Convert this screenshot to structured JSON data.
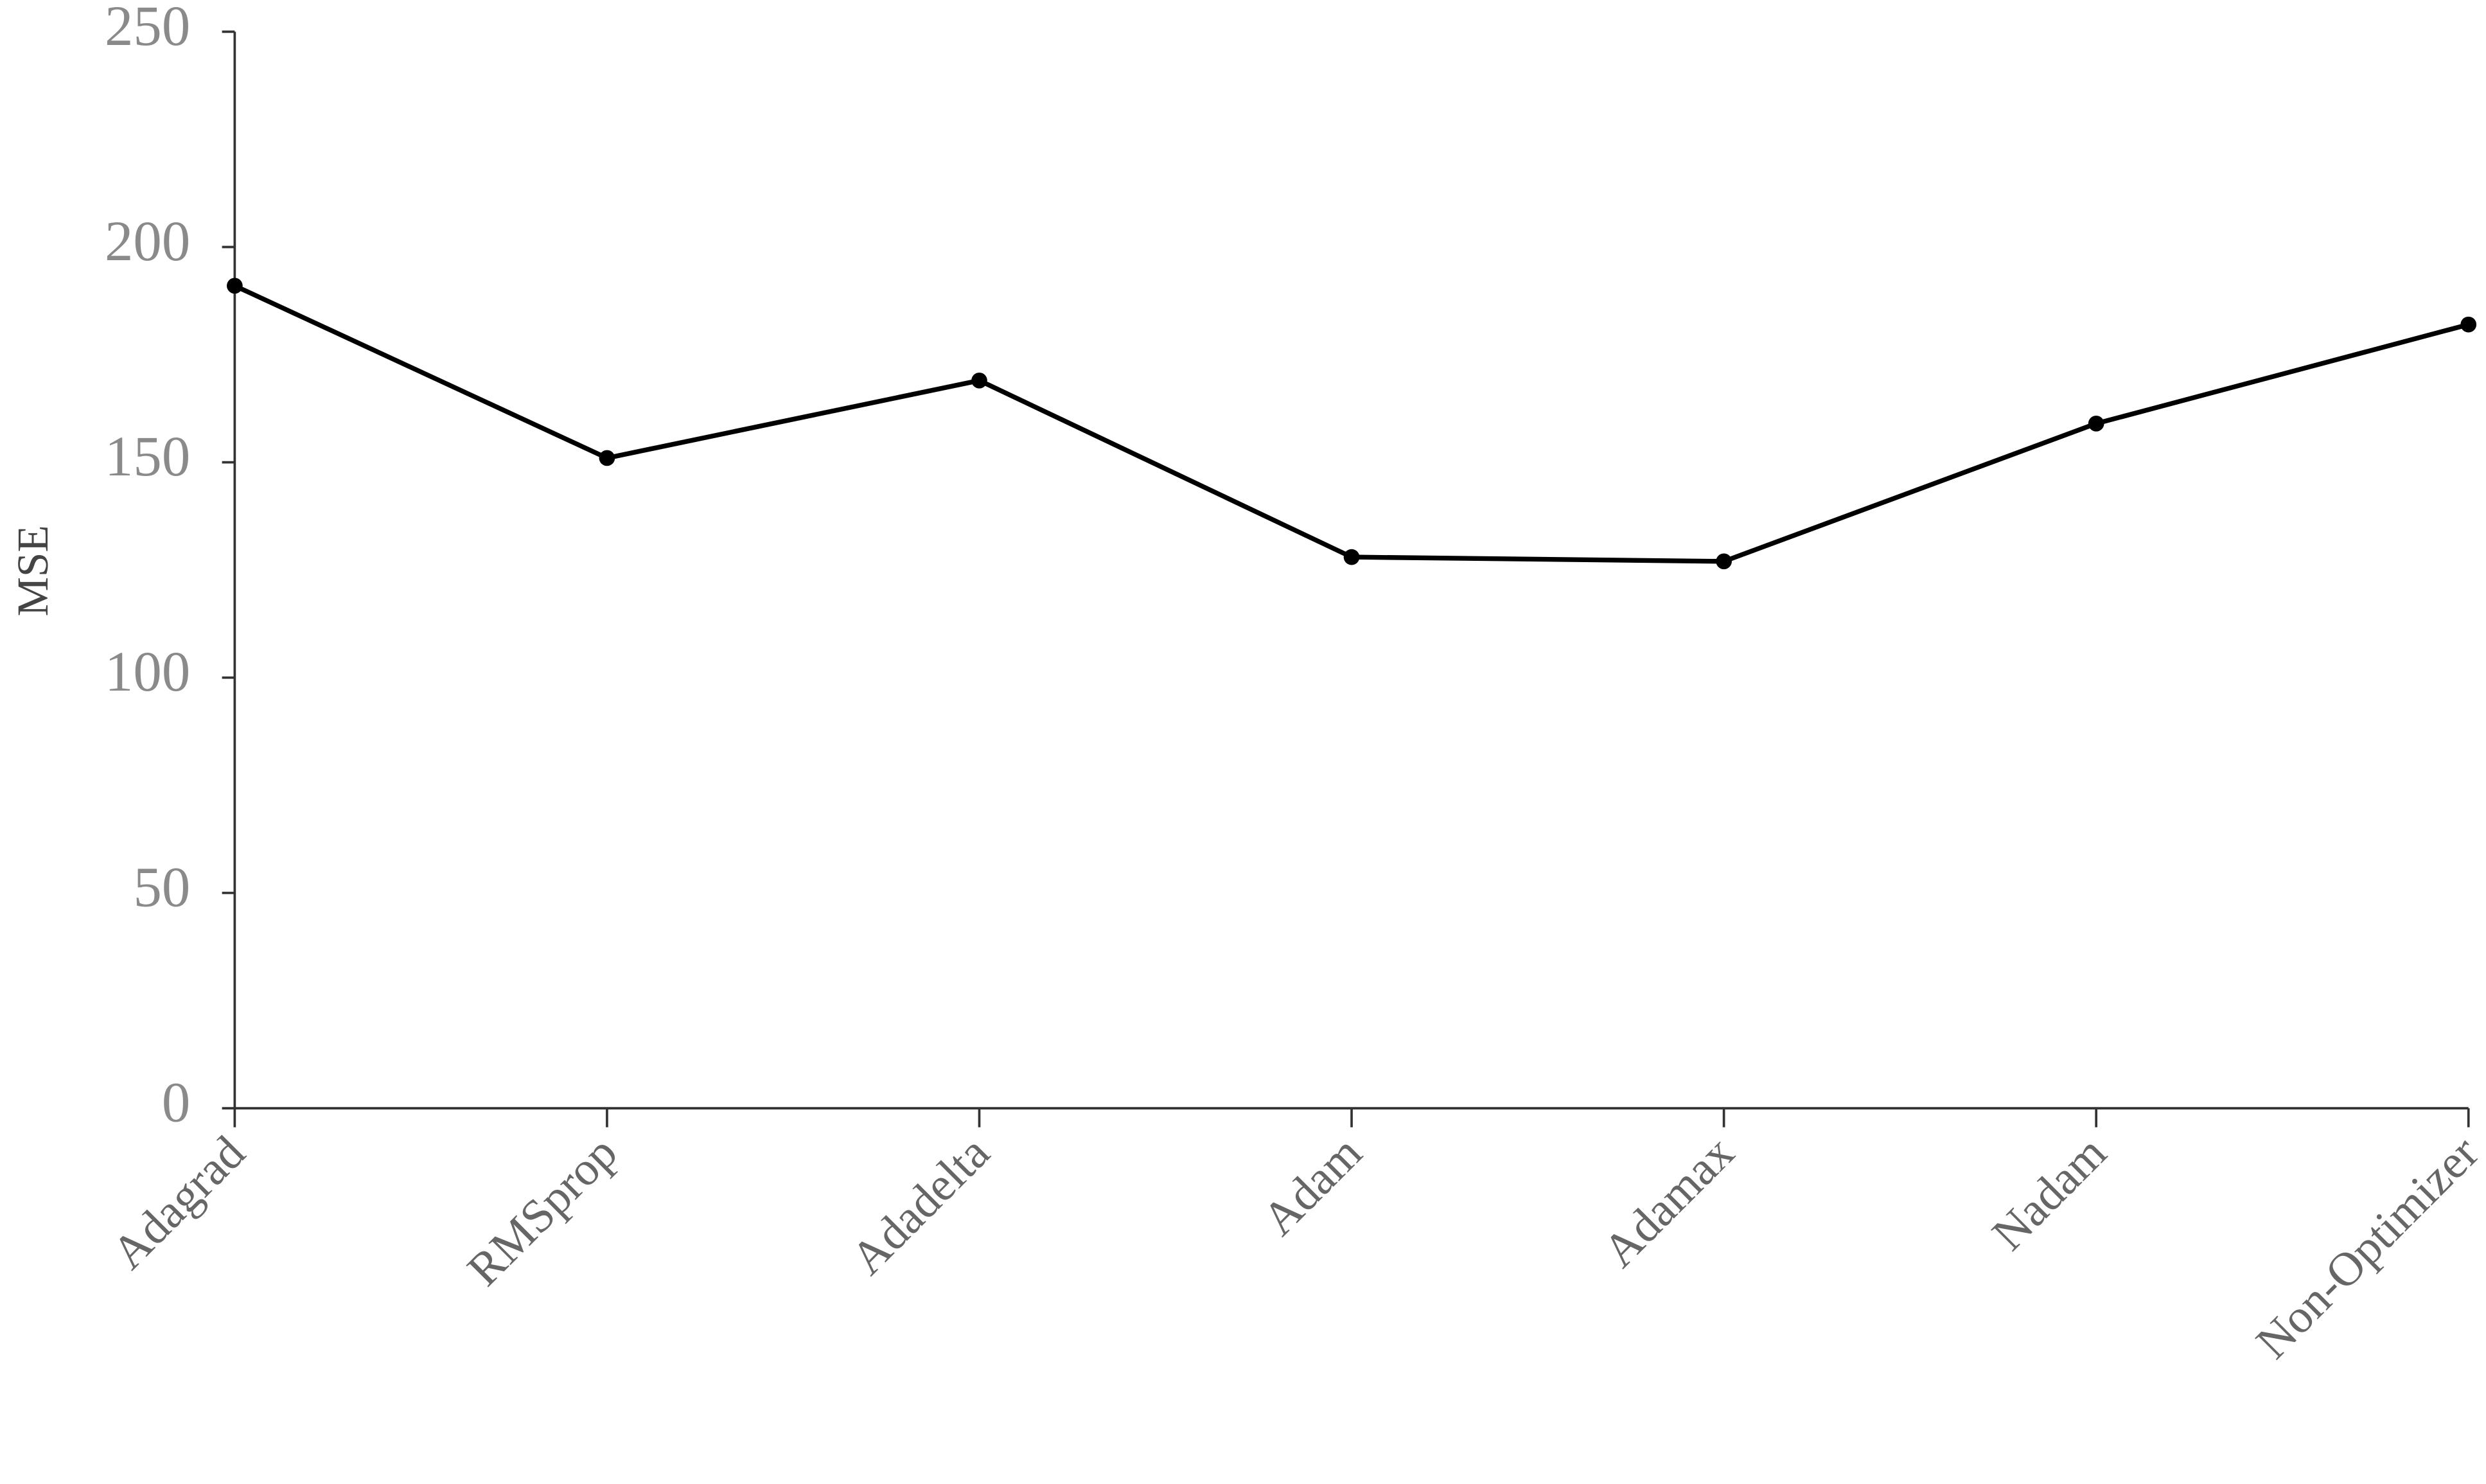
{
  "chart_data": {
    "type": "line",
    "y_label": "MSE",
    "categories": [
      "Adagrad",
      "RMSprop",
      "Adadelta",
      "Adam",
      "Adamax",
      "Nadam",
      "Non-Optimizer"
    ],
    "values": [
      191,
      151,
      169,
      128,
      127,
      159,
      182
    ],
    "color": "#000000",
    "ylim": [
      0,
      250
    ],
    "yticks": [
      0,
      50,
      100,
      150,
      200,
      250
    ]
  }
}
